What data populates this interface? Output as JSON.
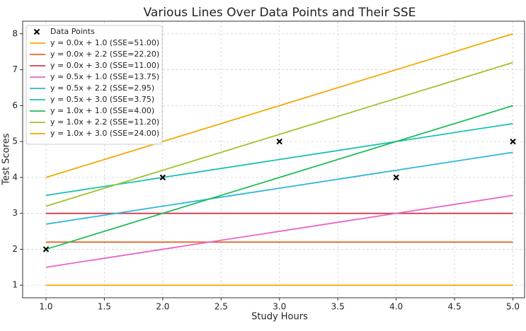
{
  "chart_data": {
    "type": "line",
    "title": "Various Lines Over Data Points and Their SSE",
    "x_label": "Study Hours",
    "y_label": "Test Scores",
    "x": [
      1,
      2,
      3,
      4,
      5
    ],
    "series": [
      {
        "name": "Data Points",
        "type": "scatter",
        "color": "#000000",
        "values": [
          2,
          4,
          5,
          4,
          5
        ]
      },
      {
        "name": "y = 0.0x + 1.0 (SSE=51.00)",
        "color": "#f2a900",
        "values": [
          1,
          1,
          1,
          1,
          1
        ]
      },
      {
        "name": "y = 0.0x + 2.2 (SSE=22.20)",
        "color": "#e2682c",
        "values": [
          2.2,
          2.2,
          2.2,
          2.2,
          2.2
        ]
      },
      {
        "name": "y = 0.0x + 3.0 (SSE=11.00)",
        "color": "#cf3b4e",
        "values": [
          3,
          3,
          3,
          3,
          3
        ]
      },
      {
        "name": "y = 0.5x + 1.0 (SSE=13.75)",
        "color": "#e865c8",
        "values": [
          1.5,
          2,
          2.5,
          3,
          3.5
        ]
      },
      {
        "name": "y = 0.5x + 2.2 (SSE=2.95)",
        "color": "#2db6dc",
        "values": [
          2.7,
          3.2,
          3.7,
          4.2,
          4.7
        ]
      },
      {
        "name": "y = 0.5x + 3.0 (SSE=3.75)",
        "color": "#1cc0b2",
        "values": [
          3.5,
          4,
          4.5,
          5,
          5.5
        ]
      },
      {
        "name": "y = 1.0x + 1.0 (SSE=4.00)",
        "color": "#1fbd5a",
        "values": [
          2,
          3,
          4,
          5,
          6
        ]
      },
      {
        "name": "y = 1.0x + 2.2 (SSE=11.20)",
        "color": "#9cc42a",
        "values": [
          3.2,
          4.2,
          5.2,
          6.2,
          7.2
        ]
      },
      {
        "name": "y = 1.0x + 3.0 (SSE=24.00)",
        "color": "#f2a900",
        "values": [
          4,
          5,
          6,
          7,
          8
        ]
      }
    ],
    "xlim": [
      0.8,
      5.1
    ],
    "ylim": [
      0.65,
      8.35
    ],
    "xticks": [
      {
        "value": 1,
        "label": "1.0"
      },
      {
        "value": 1.5,
        "label": "1.5"
      },
      {
        "value": 2,
        "label": "2.0"
      },
      {
        "value": 2.5,
        "label": "2.5"
      },
      {
        "value": 3,
        "label": "3.0"
      },
      {
        "value": 3.5,
        "label": "3.5"
      },
      {
        "value": 4,
        "label": "4.0"
      },
      {
        "value": 4.5,
        "label": "4.5"
      },
      {
        "value": 5,
        "label": "5.0"
      }
    ],
    "yticks": [
      1,
      2,
      3,
      4,
      5,
      6,
      7,
      8
    ],
    "grid": true,
    "legend": "upper-left"
  }
}
